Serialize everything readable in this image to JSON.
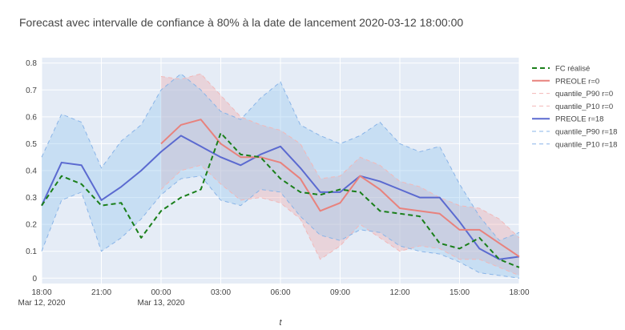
{
  "chart_data": {
    "type": "line",
    "title": "Forecast avec intervalle de confiance à 80% à la date de lancement 2020-03-12 18:00:00",
    "xlabel": "t",
    "ylabel": "",
    "ylim": [
      -0.02,
      0.82
    ],
    "yticks": [
      0,
      0.1,
      0.2,
      0.3,
      0.4,
      0.5,
      0.6,
      0.7,
      0.8
    ],
    "ytick_labels": [
      "0",
      "0.1",
      "0.2",
      "0.3",
      "0.4",
      "0.5",
      "0.6",
      "0.7",
      "0.8"
    ],
    "xlim": [
      "2020-03-12T18:00",
      "2020-03-13T18:00"
    ],
    "xticks": [
      {
        "t": "2020-03-12T18:00",
        "label": "18:00",
        "sub": "Mar 12, 2020"
      },
      {
        "t": "2020-03-12T21:00",
        "label": "21:00",
        "sub": ""
      },
      {
        "t": "2020-03-13T00:00",
        "label": "00:00",
        "sub": "Mar 13, 2020"
      },
      {
        "t": "2020-03-13T03:00",
        "label": "03:00",
        "sub": ""
      },
      {
        "t": "2020-03-13T06:00",
        "label": "06:00",
        "sub": ""
      },
      {
        "t": "2020-03-13T09:00",
        "label": "09:00",
        "sub": ""
      },
      {
        "t": "2020-03-13T12:00",
        "label": "12:00",
        "sub": ""
      },
      {
        "t": "2020-03-13T15:00",
        "label": "15:00",
        "sub": ""
      },
      {
        "t": "2020-03-13T18:00",
        "label": "18:00",
        "sub": ""
      }
    ],
    "grid": true,
    "legend_position": "right",
    "series": [
      {
        "name": "FC réalisé",
        "role": "line",
        "color": "#1a7f1a",
        "dash": "dash",
        "x": [
          "2020-03-12T18:00",
          "2020-03-12T19:00",
          "2020-03-12T20:00",
          "2020-03-12T21:00",
          "2020-03-12T22:00",
          "2020-03-12T23:00",
          "2020-03-13T00:00",
          "2020-03-13T01:00",
          "2020-03-13T02:00",
          "2020-03-13T03:00",
          "2020-03-13T04:00",
          "2020-03-13T05:00",
          "2020-03-13T06:00",
          "2020-03-13T07:00",
          "2020-03-13T08:00",
          "2020-03-13T09:00",
          "2020-03-13T10:00",
          "2020-03-13T11:00",
          "2020-03-13T12:00",
          "2020-03-13T13:00",
          "2020-03-13T14:00",
          "2020-03-13T15:00",
          "2020-03-13T16:00",
          "2020-03-13T17:00",
          "2020-03-13T18:00"
        ],
        "y": [
          0.27,
          0.38,
          0.35,
          0.27,
          0.28,
          0.15,
          0.25,
          0.3,
          0.33,
          0.54,
          0.46,
          0.45,
          0.37,
          0.32,
          0.31,
          0.33,
          0.32,
          0.25,
          0.24,
          0.23,
          0.13,
          0.11,
          0.15,
          0.07,
          0.04
        ]
      },
      {
        "name": "PREOLE r=0",
        "role": "line",
        "color": "#e8827d",
        "dash": "solid",
        "x": [
          "2020-03-13T00:00",
          "2020-03-13T01:00",
          "2020-03-13T02:00",
          "2020-03-13T03:00",
          "2020-03-13T04:00",
          "2020-03-13T05:00",
          "2020-03-13T06:00",
          "2020-03-13T07:00",
          "2020-03-13T08:00",
          "2020-03-13T09:00",
          "2020-03-13T10:00",
          "2020-03-13T11:00",
          "2020-03-13T12:00",
          "2020-03-13T13:00",
          "2020-03-13T14:00",
          "2020-03-13T15:00",
          "2020-03-13T16:00",
          "2020-03-13T17:00",
          "2020-03-13T18:00"
        ],
        "y": [
          0.5,
          0.57,
          0.59,
          0.5,
          0.45,
          0.45,
          0.43,
          0.37,
          0.25,
          0.28,
          0.38,
          0.33,
          0.26,
          0.25,
          0.24,
          0.18,
          0.18,
          0.13,
          0.08
        ]
      },
      {
        "name": "quantile_P90 r=0",
        "role": "band_upper",
        "color": "#f2b8b8",
        "fill": "rgba(239,160,160,0.32)",
        "x": [
          "2020-03-13T00:00",
          "2020-03-13T01:00",
          "2020-03-13T02:00",
          "2020-03-13T03:00",
          "2020-03-13T04:00",
          "2020-03-13T05:00",
          "2020-03-13T06:00",
          "2020-03-13T07:00",
          "2020-03-13T08:00",
          "2020-03-13T09:00",
          "2020-03-13T10:00",
          "2020-03-13T11:00",
          "2020-03-13T12:00",
          "2020-03-13T13:00",
          "2020-03-13T14:00",
          "2020-03-13T15:00",
          "2020-03-13T16:00",
          "2020-03-13T17:00",
          "2020-03-13T18:00"
        ],
        "y": [
          0.75,
          0.74,
          0.76,
          0.68,
          0.6,
          0.57,
          0.55,
          0.5,
          0.37,
          0.38,
          0.45,
          0.42,
          0.36,
          0.34,
          0.3,
          0.27,
          0.26,
          0.22,
          0.15
        ]
      },
      {
        "name": "quantile_P10 r=0",
        "role": "band_lower",
        "color": "#f2b8b8",
        "x": [
          "2020-03-13T00:00",
          "2020-03-13T01:00",
          "2020-03-13T02:00",
          "2020-03-13T03:00",
          "2020-03-13T04:00",
          "2020-03-13T05:00",
          "2020-03-13T06:00",
          "2020-03-13T07:00",
          "2020-03-13T08:00",
          "2020-03-13T09:00",
          "2020-03-13T10:00",
          "2020-03-13T11:00",
          "2020-03-13T12:00",
          "2020-03-13T13:00",
          "2020-03-13T14:00",
          "2020-03-13T15:00",
          "2020-03-13T16:00",
          "2020-03-13T17:00",
          "2020-03-13T18:00"
        ],
        "y": [
          0.33,
          0.4,
          0.42,
          0.35,
          0.29,
          0.3,
          0.28,
          0.22,
          0.07,
          0.12,
          0.2,
          0.15,
          0.1,
          0.12,
          0.11,
          0.07,
          0.07,
          0.04,
          0.01
        ]
      },
      {
        "name": "PREOLE r=18",
        "role": "line",
        "color": "#5b6ad0",
        "dash": "solid",
        "x": [
          "2020-03-12T18:00",
          "2020-03-12T19:00",
          "2020-03-12T20:00",
          "2020-03-12T21:00",
          "2020-03-12T22:00",
          "2020-03-12T23:00",
          "2020-03-13T00:00",
          "2020-03-13T01:00",
          "2020-03-13T02:00",
          "2020-03-13T03:00",
          "2020-03-13T04:00",
          "2020-03-13T05:00",
          "2020-03-13T06:00",
          "2020-03-13T07:00",
          "2020-03-13T08:00",
          "2020-03-13T09:00",
          "2020-03-13T10:00",
          "2020-03-13T11:00",
          "2020-03-13T12:00",
          "2020-03-13T13:00",
          "2020-03-13T14:00",
          "2020-03-13T15:00",
          "2020-03-13T16:00",
          "2020-03-13T17:00",
          "2020-03-13T18:00"
        ],
        "y": [
          0.27,
          0.43,
          0.42,
          0.29,
          0.34,
          0.4,
          0.47,
          0.53,
          0.49,
          0.45,
          0.42,
          0.46,
          0.49,
          0.41,
          0.32,
          0.32,
          0.38,
          0.36,
          0.33,
          0.3,
          0.3,
          0.21,
          0.11,
          0.07,
          0.08
        ]
      },
      {
        "name": "quantile_P90 r=18",
        "role": "band_upper",
        "color": "#89b4e8",
        "fill": "rgba(150,200,240,0.38)",
        "x": [
          "2020-03-12T18:00",
          "2020-03-12T19:00",
          "2020-03-12T20:00",
          "2020-03-12T21:00",
          "2020-03-12T22:00",
          "2020-03-12T23:00",
          "2020-03-13T00:00",
          "2020-03-13T01:00",
          "2020-03-13T02:00",
          "2020-03-13T03:00",
          "2020-03-13T04:00",
          "2020-03-13T05:00",
          "2020-03-13T06:00",
          "2020-03-13T07:00",
          "2020-03-13T08:00",
          "2020-03-13T09:00",
          "2020-03-13T10:00",
          "2020-03-13T11:00",
          "2020-03-13T12:00",
          "2020-03-13T13:00",
          "2020-03-13T14:00",
          "2020-03-13T15:00",
          "2020-03-13T16:00",
          "2020-03-13T17:00",
          "2020-03-13T18:00"
        ],
        "y": [
          0.45,
          0.61,
          0.58,
          0.41,
          0.51,
          0.57,
          0.7,
          0.76,
          0.7,
          0.62,
          0.59,
          0.67,
          0.73,
          0.57,
          0.53,
          0.5,
          0.53,
          0.58,
          0.5,
          0.47,
          0.49,
          0.35,
          0.23,
          0.14,
          0.17
        ]
      },
      {
        "name": "quantile_P10 r=18",
        "role": "band_lower",
        "color": "#89b4e8",
        "x": [
          "2020-03-12T18:00",
          "2020-03-12T19:00",
          "2020-03-12T20:00",
          "2020-03-12T21:00",
          "2020-03-12T22:00",
          "2020-03-12T23:00",
          "2020-03-13T00:00",
          "2020-03-13T01:00",
          "2020-03-13T02:00",
          "2020-03-13T03:00",
          "2020-03-13T04:00",
          "2020-03-13T05:00",
          "2020-03-13T06:00",
          "2020-03-13T07:00",
          "2020-03-13T08:00",
          "2020-03-13T09:00",
          "2020-03-13T10:00",
          "2020-03-13T11:00",
          "2020-03-13T12:00",
          "2020-03-13T13:00",
          "2020-03-13T14:00",
          "2020-03-13T15:00",
          "2020-03-13T16:00",
          "2020-03-13T17:00",
          "2020-03-13T18:00"
        ],
        "y": [
          0.1,
          0.29,
          0.32,
          0.1,
          0.15,
          0.22,
          0.31,
          0.37,
          0.38,
          0.29,
          0.27,
          0.33,
          0.32,
          0.23,
          0.16,
          0.14,
          0.18,
          0.17,
          0.12,
          0.1,
          0.09,
          0.06,
          0.02,
          0.01,
          0.0
        ]
      }
    ]
  }
}
